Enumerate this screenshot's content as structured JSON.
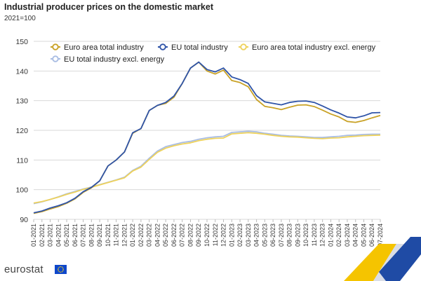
{
  "title": "Industrial producer prices on the domestic market",
  "subtitle": "2021=100",
  "branding": {
    "logo_text": "eurostat"
  },
  "chart_data": {
    "type": "line",
    "title": "Industrial producer prices on the domestic market",
    "subtitle": "2021=100",
    "xlabel": "",
    "ylabel": "",
    "ylim": [
      90,
      150
    ],
    "yticks": [
      90,
      100,
      110,
      120,
      130,
      140,
      150
    ],
    "grid": true,
    "legend_position": "top",
    "categories": [
      "01-2021",
      "02-2021",
      "03-2021",
      "04-2021",
      "05-2021",
      "06-2021",
      "07-2021",
      "08-2021",
      "09-2021",
      "10-2021",
      "11-2021",
      "12-2021",
      "01-2022",
      "02-2022",
      "03-2022",
      "04-2022",
      "05-2022",
      "06-2022",
      "07-2022",
      "08-2022",
      "09-2022",
      "10-2022",
      "11-2022",
      "12-2022",
      "01-2023",
      "02-2023",
      "03-2023",
      "04-2023",
      "05-2023",
      "06-2023",
      "07-2023",
      "08-2023",
      "09-2023",
      "10-2023",
      "11-2023",
      "12-2023",
      "01-2024",
      "02-2024",
      "03-2024",
      "04-2024",
      "05-2024",
      "06-2024",
      "07-2024"
    ],
    "series": [
      {
        "name": "Euro area total industry",
        "color": "#c9a227",
        "values": [
          92.0,
          92.6,
          93.5,
          94.3,
          95.4,
          96.9,
          99.1,
          100.6,
          103.0,
          108.0,
          110.0,
          112.7,
          119.0,
          120.6,
          126.7,
          128.4,
          129.1,
          131.2,
          135.8,
          141.0,
          143.0,
          140.0,
          139.0,
          140.3,
          136.8,
          136.1,
          134.7,
          130.4,
          128.1,
          127.6,
          127.0,
          127.8,
          128.5,
          128.6,
          128.0,
          126.8,
          125.5,
          124.5,
          123.0,
          122.7,
          123.3,
          124.2,
          125.0
        ]
      },
      {
        "name": "EU total industry",
        "color": "#2f54a8",
        "values": [
          92.2,
          92.8,
          93.8,
          94.6,
          95.6,
          97.1,
          99.3,
          100.8,
          103.0,
          108.0,
          110.0,
          112.7,
          119.2,
          120.6,
          126.7,
          128.4,
          129.4,
          131.6,
          135.8,
          141.0,
          143.0,
          140.5,
          139.7,
          141.0,
          138.0,
          137.1,
          135.8,
          131.7,
          129.6,
          129.1,
          128.6,
          129.4,
          129.8,
          129.9,
          129.4,
          128.2,
          126.9,
          125.8,
          124.5,
          124.2,
          124.9,
          125.9,
          126.0
        ]
      },
      {
        "name": "Euro area total industry excl. energy",
        "color": "#eed25c",
        "values": [
          95.5,
          96.0,
          96.7,
          97.5,
          98.4,
          99.2,
          100.1,
          100.8,
          101.6,
          102.4,
          103.2,
          104.0,
          106.3,
          107.6,
          110.2,
          112.6,
          114.0,
          114.8,
          115.4,
          115.8,
          116.5,
          117.0,
          117.3,
          117.4,
          118.8,
          119.0,
          119.2,
          119.0,
          118.7,
          118.3,
          118.0,
          117.8,
          117.7,
          117.5,
          117.3,
          117.2,
          117.4,
          117.5,
          117.8,
          118.0,
          118.2,
          118.3,
          118.4
        ]
      },
      {
        "name": "EU total industry excl. energy",
        "color": "#a9bde3",
        "values": [
          95.3,
          95.9,
          96.7,
          97.6,
          98.6,
          99.4,
          100.2,
          100.9,
          101.7,
          102.5,
          103.3,
          104.2,
          106.5,
          107.9,
          110.6,
          113.0,
          114.5,
          115.2,
          115.9,
          116.3,
          117.0,
          117.5,
          117.8,
          118.0,
          119.3,
          119.5,
          119.7,
          119.5,
          119.0,
          118.7,
          118.3,
          118.1,
          118.0,
          117.8,
          117.6,
          117.6,
          117.8,
          118.0,
          118.3,
          118.4,
          118.6,
          118.7,
          118.7
        ]
      }
    ]
  }
}
